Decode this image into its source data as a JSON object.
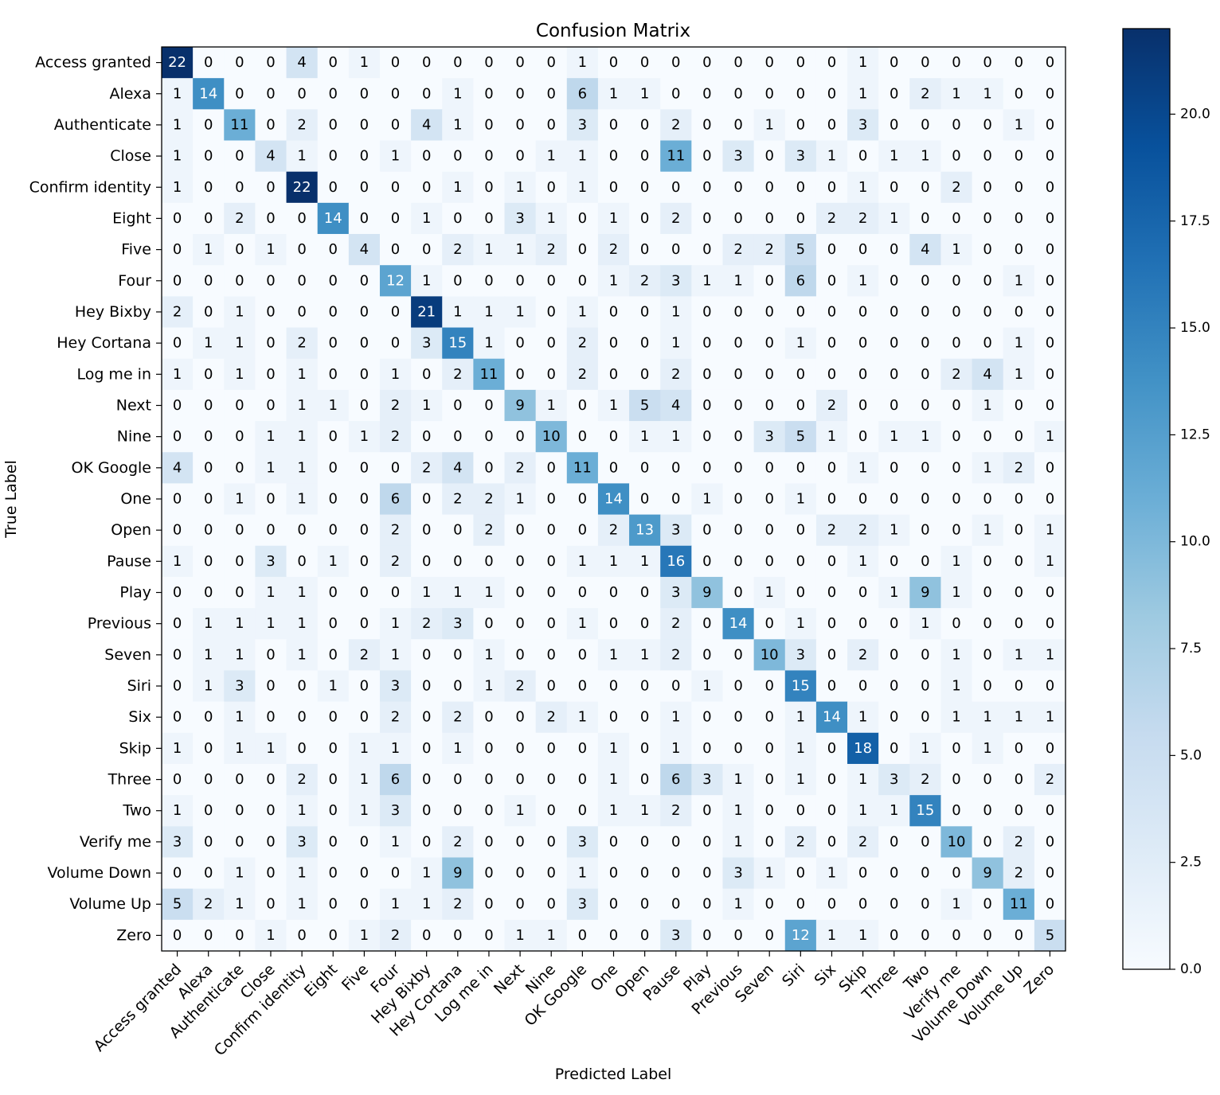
{
  "chart_data": {
    "type": "heatmap",
    "title": "Confusion Matrix",
    "xlabel": "Predicted Label",
    "ylabel": "True Label",
    "categories": [
      "Access granted",
      "Alexa",
      "Authenticate",
      "Close",
      "Confirm identity",
      "Eight",
      "Five",
      "Four",
      "Hey Bixby",
      "Hey Cortana",
      "Log me in",
      "Next",
      "Nine",
      "OK Google",
      "One",
      "Open",
      "Pause",
      "Play",
      "Previous",
      "Seven",
      "Siri",
      "Six",
      "Skip",
      "Three",
      "Two",
      "Verify me",
      "Volume Down",
      "Volume Up",
      "Zero"
    ],
    "matrix": [
      [
        22,
        0,
        0,
        0,
        4,
        0,
        1,
        0,
        0,
        0,
        0,
        0,
        0,
        1,
        0,
        0,
        0,
        0,
        0,
        0,
        0,
        0,
        1,
        0,
        0,
        0,
        0,
        0,
        0
      ],
      [
        1,
        14,
        0,
        0,
        0,
        0,
        0,
        0,
        0,
        1,
        0,
        0,
        0,
        6,
        1,
        1,
        0,
        0,
        0,
        0,
        0,
        0,
        1,
        0,
        2,
        1,
        1,
        0,
        0
      ],
      [
        1,
        0,
        11,
        0,
        2,
        0,
        0,
        0,
        4,
        1,
        0,
        0,
        0,
        3,
        0,
        0,
        2,
        0,
        0,
        1,
        0,
        0,
        3,
        0,
        0,
        0,
        0,
        1,
        0
      ],
      [
        1,
        0,
        0,
        4,
        1,
        0,
        0,
        1,
        0,
        0,
        0,
        0,
        1,
        1,
        0,
        0,
        11,
        0,
        3,
        0,
        3,
        1,
        0,
        1,
        1,
        0,
        0,
        0,
        0
      ],
      [
        1,
        0,
        0,
        0,
        22,
        0,
        0,
        0,
        0,
        1,
        0,
        1,
        0,
        1,
        0,
        0,
        0,
        0,
        0,
        0,
        0,
        0,
        1,
        0,
        0,
        2,
        0,
        0,
        0
      ],
      [
        0,
        0,
        2,
        0,
        0,
        14,
        0,
        0,
        1,
        0,
        0,
        3,
        1,
        0,
        1,
        0,
        2,
        0,
        0,
        0,
        0,
        2,
        2,
        1,
        0,
        0,
        0,
        0,
        0
      ],
      [
        0,
        1,
        0,
        1,
        0,
        0,
        4,
        0,
        0,
        2,
        1,
        1,
        2,
        0,
        2,
        0,
        0,
        0,
        2,
        2,
        5,
        0,
        0,
        0,
        4,
        1,
        0,
        0,
        0
      ],
      [
        0,
        0,
        0,
        0,
        0,
        0,
        0,
        12,
        1,
        0,
        0,
        0,
        0,
        0,
        1,
        2,
        3,
        1,
        1,
        0,
        6,
        0,
        1,
        0,
        0,
        0,
        0,
        1,
        0
      ],
      [
        2,
        0,
        1,
        0,
        0,
        0,
        0,
        0,
        21,
        1,
        1,
        1,
        0,
        1,
        0,
        0,
        1,
        0,
        0,
        0,
        0,
        0,
        0,
        0,
        0,
        0,
        0,
        0,
        0
      ],
      [
        0,
        1,
        1,
        0,
        2,
        0,
        0,
        0,
        3,
        15,
        1,
        0,
        0,
        2,
        0,
        0,
        1,
        0,
        0,
        0,
        1,
        0,
        0,
        0,
        0,
        0,
        0,
        1,
        0
      ],
      [
        1,
        0,
        1,
        0,
        1,
        0,
        0,
        1,
        0,
        2,
        11,
        0,
        0,
        2,
        0,
        0,
        2,
        0,
        0,
        0,
        0,
        0,
        0,
        0,
        0,
        2,
        4,
        1,
        0
      ],
      [
        0,
        0,
        0,
        0,
        1,
        1,
        0,
        2,
        1,
        0,
        0,
        9,
        1,
        0,
        1,
        5,
        4,
        0,
        0,
        0,
        0,
        2,
        0,
        0,
        0,
        0,
        1,
        0,
        0
      ],
      [
        0,
        0,
        0,
        1,
        1,
        0,
        1,
        2,
        0,
        0,
        0,
        0,
        10,
        0,
        0,
        1,
        1,
        0,
        0,
        3,
        5,
        1,
        0,
        1,
        1,
        0,
        0,
        0,
        1
      ],
      [
        4,
        0,
        0,
        1,
        1,
        0,
        0,
        0,
        2,
        4,
        0,
        2,
        0,
        11,
        0,
        0,
        0,
        0,
        0,
        0,
        0,
        0,
        1,
        0,
        0,
        0,
        1,
        2,
        0
      ],
      [
        0,
        0,
        1,
        0,
        1,
        0,
        0,
        6,
        0,
        2,
        2,
        1,
        0,
        0,
        14,
        0,
        0,
        1,
        0,
        0,
        1,
        0,
        0,
        0,
        0,
        0,
        0,
        0,
        0
      ],
      [
        0,
        0,
        0,
        0,
        0,
        0,
        0,
        2,
        0,
        0,
        2,
        0,
        0,
        0,
        2,
        13,
        3,
        0,
        0,
        0,
        0,
        2,
        2,
        1,
        0,
        0,
        1,
        0,
        1
      ],
      [
        1,
        0,
        0,
        3,
        0,
        1,
        0,
        2,
        0,
        0,
        0,
        0,
        0,
        1,
        1,
        1,
        16,
        0,
        0,
        0,
        0,
        0,
        1,
        0,
        0,
        1,
        0,
        0,
        1
      ],
      [
        0,
        0,
        0,
        1,
        1,
        0,
        0,
        0,
        1,
        1,
        1,
        0,
        0,
        0,
        0,
        0,
        3,
        9,
        0,
        1,
        0,
        0,
        0,
        1,
        9,
        1,
        0,
        0,
        0
      ],
      [
        0,
        1,
        1,
        1,
        1,
        0,
        0,
        1,
        2,
        3,
        0,
        0,
        0,
        1,
        0,
        0,
        2,
        0,
        14,
        0,
        1,
        0,
        0,
        0,
        1,
        0,
        0,
        0,
        0
      ],
      [
        0,
        1,
        1,
        0,
        1,
        0,
        2,
        1,
        0,
        0,
        1,
        0,
        0,
        0,
        1,
        1,
        2,
        0,
        0,
        10,
        3,
        0,
        2,
        0,
        0,
        1,
        0,
        1,
        1
      ],
      [
        0,
        1,
        3,
        0,
        0,
        1,
        0,
        3,
        0,
        0,
        1,
        2,
        0,
        0,
        0,
        0,
        0,
        1,
        0,
        0,
        15,
        0,
        0,
        0,
        0,
        1,
        0,
        0,
        0
      ],
      [
        0,
        0,
        1,
        0,
        0,
        0,
        0,
        2,
        0,
        2,
        0,
        0,
        2,
        1,
        0,
        0,
        1,
        0,
        0,
        0,
        1,
        14,
        1,
        0,
        0,
        1,
        1,
        1,
        1
      ],
      [
        1,
        0,
        1,
        1,
        0,
        0,
        1,
        1,
        0,
        1,
        0,
        0,
        0,
        0,
        1,
        0,
        1,
        0,
        0,
        0,
        1,
        0,
        18,
        0,
        1,
        0,
        1,
        0,
        0
      ],
      [
        0,
        0,
        0,
        0,
        2,
        0,
        1,
        6,
        0,
        0,
        0,
        0,
        0,
        0,
        1,
        0,
        6,
        3,
        1,
        0,
        1,
        0,
        1,
        3,
        2,
        0,
        0,
        0,
        2
      ],
      [
        1,
        0,
        0,
        0,
        1,
        0,
        1,
        3,
        0,
        0,
        0,
        1,
        0,
        0,
        1,
        1,
        2,
        0,
        1,
        0,
        0,
        0,
        1,
        1,
        15,
        0,
        0,
        0,
        0
      ],
      [
        3,
        0,
        0,
        0,
        3,
        0,
        0,
        1,
        0,
        2,
        0,
        0,
        0,
        3,
        0,
        0,
        0,
        0,
        1,
        0,
        2,
        0,
        2,
        0,
        0,
        10,
        0,
        2,
        0
      ],
      [
        0,
        0,
        1,
        0,
        1,
        0,
        0,
        0,
        1,
        9,
        0,
        0,
        0,
        1,
        0,
        0,
        0,
        0,
        3,
        1,
        0,
        1,
        0,
        0,
        0,
        0,
        9,
        2,
        0
      ],
      [
        5,
        2,
        1,
        0,
        1,
        0,
        0,
        1,
        1,
        2,
        0,
        0,
        0,
        3,
        0,
        0,
        0,
        0,
        1,
        0,
        0,
        0,
        0,
        0,
        0,
        1,
        0,
        11,
        0
      ],
      [
        0,
        0,
        0,
        1,
        0,
        0,
        1,
        2,
        0,
        0,
        0,
        1,
        1,
        0,
        0,
        0,
        3,
        0,
        0,
        0,
        12,
        1,
        1,
        0,
        0,
        0,
        0,
        0,
        5
      ]
    ],
    "colormap": "Blues",
    "vmin": 0,
    "vmax": 22,
    "colorbar": {
      "ticks": [
        0.0,
        2.5,
        5.0,
        7.5,
        10.0,
        12.5,
        15.0,
        17.5,
        20.0
      ],
      "tick_labels": [
        "0.0",
        "2.5",
        "5.0",
        "7.5",
        "10.0",
        "12.5",
        "15.0",
        "17.5",
        "20.0"
      ]
    },
    "text_threshold": 11
  }
}
